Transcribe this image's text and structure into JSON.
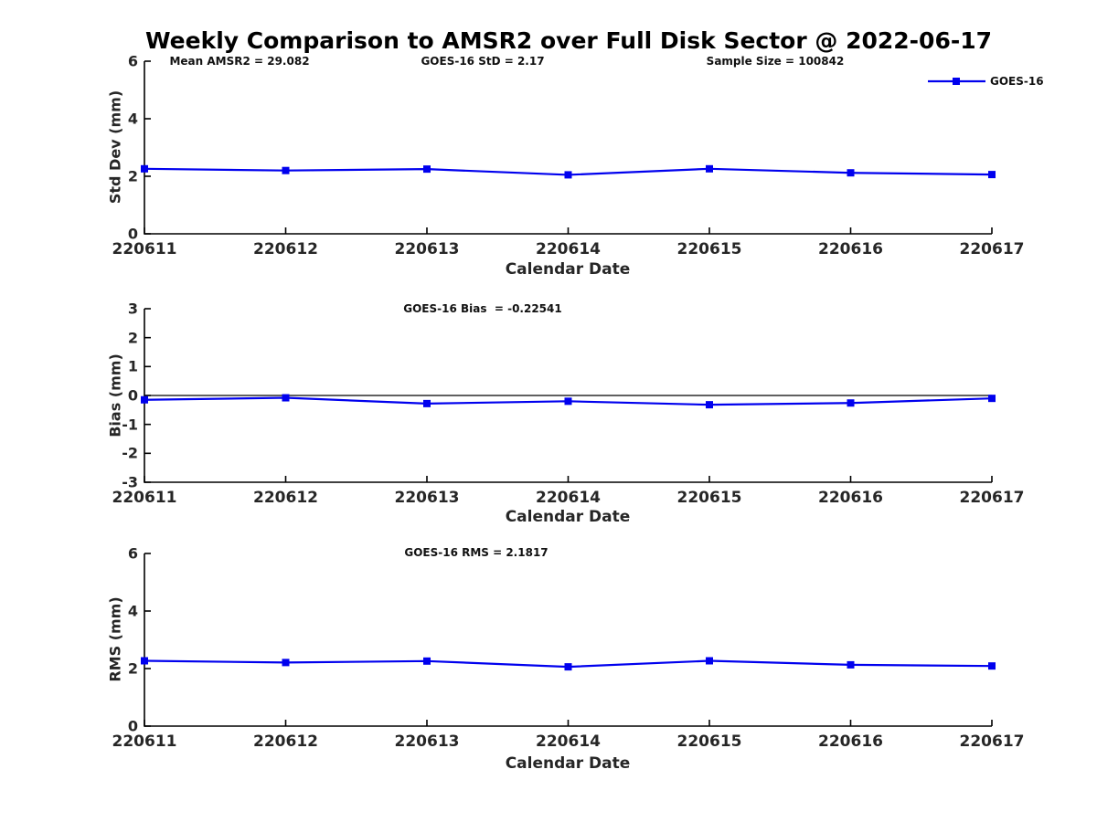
{
  "title": "Weekly Comparison to AMSR2 over Full Disk Sector @ 2022-06-17",
  "legend": {
    "label": "GOES-16"
  },
  "categories": [
    "220611",
    "220612",
    "220613",
    "220614",
    "220615",
    "220616",
    "220617"
  ],
  "colors": {
    "line": "#0000ee",
    "axis": "#000000",
    "text": "#262626",
    "background": "#ffffff"
  },
  "chart_data": [
    {
      "type": "line",
      "ylabel": "Std Dev (mm)",
      "xlabel": "Calendar Date",
      "annotations": [
        "Mean AMSR2 = 29.082",
        "GOES-16 StD = 2.17",
        "Sample Size = 100842"
      ],
      "x": [
        "220611",
        "220612",
        "220613",
        "220614",
        "220615",
        "220616",
        "220617"
      ],
      "ylim": [
        0,
        6
      ],
      "yticks": [
        0,
        2,
        4,
        6
      ],
      "zero_line": false,
      "legend_position": "top-right-outside",
      "series": [
        {
          "name": "GOES-16",
          "values": [
            2.26,
            2.2,
            2.25,
            2.05,
            2.26,
            2.12,
            2.06
          ]
        }
      ]
    },
    {
      "type": "line",
      "ylabel": "Bias (mm)",
      "xlabel": "Calendar Date",
      "annotations": [
        "GOES-16 Bias  = -0.22541"
      ],
      "x": [
        "220611",
        "220612",
        "220613",
        "220614",
        "220615",
        "220616",
        "220617"
      ],
      "ylim": [
        -3,
        3
      ],
      "yticks": [
        -3,
        -2,
        -1,
        0,
        1,
        2,
        3
      ],
      "zero_line": true,
      "series": [
        {
          "name": "GOES-16",
          "values": [
            -0.15,
            -0.08,
            -0.28,
            -0.2,
            -0.32,
            -0.26,
            -0.1
          ]
        }
      ]
    },
    {
      "type": "line",
      "ylabel": "RMS (mm)",
      "xlabel": "Calendar Date",
      "annotations": [
        "GOES-16 RMS = 2.1817"
      ],
      "x": [
        "220611",
        "220612",
        "220613",
        "220614",
        "220615",
        "220616",
        "220617"
      ],
      "ylim": [
        0,
        6
      ],
      "yticks": [
        0,
        2,
        4,
        6
      ],
      "zero_line": false,
      "series": [
        {
          "name": "GOES-16",
          "values": [
            2.27,
            2.21,
            2.26,
            2.06,
            2.27,
            2.13,
            2.09
          ]
        }
      ]
    }
  ]
}
